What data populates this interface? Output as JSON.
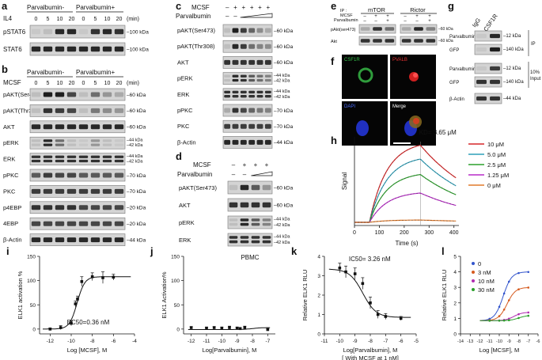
{
  "panel_letters": [
    "a",
    "b",
    "c",
    "d",
    "e",
    "f",
    "g",
    "h",
    "i",
    "j",
    "k",
    "l"
  ],
  "kda_unit": "kDa",
  "min_unit": "(min)",
  "plus": "+",
  "minus": "–",
  "panel_a": {
    "row_label": "IL4",
    "groups": [
      "Parvalbumin-",
      "Parvalbumin+"
    ],
    "times": [
      "0",
      "5",
      "10",
      "20",
      "0",
      "5",
      "10",
      "20"
    ],
    "blots": [
      {
        "label": "pSTAT6",
        "kda": "100 kDa"
      },
      {
        "label": "STAT6",
        "kda": "100 kDa"
      }
    ]
  },
  "panel_b": {
    "row_label": "MCSF",
    "groups": [
      "Parvalbumin-",
      "Parvalbumin+"
    ],
    "times": [
      "0",
      "5",
      "10",
      "20",
      "0",
      "5",
      "10",
      "20"
    ],
    "blots": [
      {
        "label": "pAKT(Ser473)",
        "kda": "60 kDa"
      },
      {
        "label": "pAKT(Thr308)",
        "kda": "60 kDa"
      },
      {
        "label": "AKT",
        "kda": "60 kDa"
      },
      {
        "label": "pERK",
        "kda": "44 kDa",
        "kda2": "42 kDa"
      },
      {
        "label": "ERK",
        "kda": "44 kDa",
        "kda2": "42 kDa"
      },
      {
        "label": "pPKC",
        "kda": "70 kDa"
      },
      {
        "label": "PKC",
        "kda": "70 kDa"
      },
      {
        "label": "p4EBP",
        "kda": "20 kDa"
      },
      {
        "label": "4EBP",
        "kda": "20 kDa"
      },
      {
        "label": "β-Actin",
        "kda": "44 kDa"
      }
    ]
  },
  "panel_c": {
    "rows": [
      "MCSF",
      "Parvalbumin"
    ],
    "mcsf_signs": [
      "-",
      "+",
      "+",
      "+",
      "+",
      "+"
    ],
    "blots": [
      {
        "label": "pAKT(Ser473)",
        "kda": "60 kDa"
      },
      {
        "label": "pAKT(Thr308)",
        "kda": "60 kDa"
      },
      {
        "label": "AKT",
        "kda": "60 kDa"
      },
      {
        "label": "pERK",
        "kda": "44 kDa",
        "kda2": "42 kDa"
      },
      {
        "label": "ERK",
        "kda": "44 kDa",
        "kda2": "42 kDa"
      },
      {
        "label": "pPKC",
        "kda": "70 kDa"
      },
      {
        "label": "PKC",
        "kda": "70 kDa"
      },
      {
        "label": "β-Actin",
        "kda": "44 kDa"
      }
    ]
  },
  "panel_d": {
    "rows": [
      "MCSF",
      "Parvalbumin"
    ],
    "mcsf_signs": [
      "-",
      "+",
      "+",
      "+"
    ],
    "blots": [
      {
        "label": "pAKT(Ser473)",
        "kda": "60 kDa"
      },
      {
        "label": "AKT",
        "kda": "60 kDa"
      },
      {
        "label": "pERK",
        "kda": "44 kDa",
        "kda2": "42 kDa"
      },
      {
        "label": "ERK",
        "kda": "44 kDa",
        "kda2": "42 kDa"
      }
    ],
    "caption": "PBMC"
  },
  "panel_e": {
    "ip_label": "IP :",
    "row_labels": [
      "MCSF",
      "Parvalbumin"
    ],
    "groups": [
      "mTOR",
      "Rictor"
    ],
    "mcsf_signs": [
      "-",
      "+",
      "+",
      "-",
      "+",
      "+"
    ],
    "parv_signs": [
      "-",
      "-",
      "+",
      "-",
      "-",
      "+"
    ],
    "blots": [
      {
        "label": "pAkt(ser473)",
        "kda": "60 kDa"
      },
      {
        "label": "Akt",
        "kda": "60 kDa"
      }
    ]
  },
  "panel_f": {
    "tiles": [
      "CSF1R",
      "PVALB",
      "DAPI",
      "Merge"
    ],
    "colors": [
      "#34c24a",
      "#e03030",
      "#4a6cff",
      "#ffffff"
    ]
  },
  "panel_g": {
    "lanes": [
      "IgG",
      "CSF1R"
    ],
    "rows": [
      {
        "label": "Parvalbumin",
        "kda": "12 kDa"
      },
      {
        "label": "GFP",
        "kda": "140 kDa"
      },
      {
        "label": "Parvalbumin",
        "kda": "12 kDa"
      },
      {
        "label": "GFP",
        "kda": "140 kDa"
      },
      {
        "label": "β-Actin",
        "kda": "44 kDa"
      }
    ],
    "ip_label": "IP",
    "input_label_1": "10%",
    "input_label_2": "Input"
  },
  "chart_data": [
    {
      "panel": "h",
      "type": "line",
      "annotation": "KD= 3.65 μM",
      "xlabel": "Time (s)",
      "ylabel": "Signal",
      "xlim": [
        0,
        420
      ],
      "xticks": [
        "0",
        "100",
        "200",
        "300",
        "400"
      ],
      "series": [
        {
          "name": "10 μM",
          "color": "#d62728",
          "plateau": 1.0
        },
        {
          "name": "5.0 μM",
          "color": "#2f9fb8",
          "plateau": 0.82
        },
        {
          "name": "2.5 μM",
          "color": "#2ca02c",
          "plateau": 0.62
        },
        {
          "name": "1.25 μM",
          "color": "#b82cc8",
          "plateau": 0.38
        },
        {
          "name": "0 μM",
          "color": "#e07a2c",
          "plateau": 0.03
        }
      ],
      "association": [
        60,
        265
      ]
    },
    {
      "panel": "i",
      "type": "scatter",
      "ylabel": "ELK1 activation %",
      "xlabel": "Log [MCSF], M",
      "annotation": "EC50=0.36 nM",
      "xlim": [
        -13,
        -4
      ],
      "ylim": [
        -10,
        150
      ],
      "xticks": [
        -12,
        -10,
        -8,
        -6,
        -4
      ],
      "yticks": [
        0,
        50,
        100,
        150
      ],
      "x": [
        -12,
        -11,
        -10,
        -9.6,
        -9.4,
        -9,
        -8,
        -7,
        -6
      ],
      "y": [
        0,
        3,
        12,
        52,
        62,
        98,
        108,
        106,
        107
      ],
      "err": [
        2,
        4,
        5,
        6,
        6,
        10,
        8,
        12,
        6
      ],
      "fit": {
        "bottom": 0,
        "top": 108,
        "logEC50": -9.44,
        "hill": 1.2
      }
    },
    {
      "panel": "j",
      "type": "scatter",
      "ylabel": "ELK1 Activation%",
      "xlabel": "Log[Parvalbumin], M",
      "xlim": [
        -12.5,
        -6.5
      ],
      "ylim": [
        -10,
        150
      ],
      "xticks": [
        -12,
        -11,
        -10,
        -9,
        -8,
        -7
      ],
      "yticks": [
        0,
        50,
        100,
        150
      ],
      "x": [
        -12,
        -11,
        -10.5,
        -10,
        -9.5,
        -9,
        -8.8,
        -8.5,
        -7
      ],
      "y": [
        3,
        2,
        3,
        2,
        3,
        2,
        1,
        3,
        -1
      ],
      "err": [
        2,
        2,
        2,
        2,
        3,
        2,
        2,
        3,
        2
      ],
      "fit": {
        "bottom": -1,
        "top": 3,
        "logEC50": -8,
        "hill": 1.5
      }
    },
    {
      "panel": "k",
      "type": "scatter",
      "ylabel": "Relative ELK1 RLU",
      "xlabel": "Log[Parvalbumin], M",
      "xlabel2": "[ With MCSF at 1 nM]",
      "annotation": "IC50= 3.26 nM",
      "xlim": [
        -11,
        -5
      ],
      "ylim": [
        0,
        4
      ],
      "xticks": [
        -11,
        -10,
        -9,
        -8,
        -7,
        -6,
        -5
      ],
      "yticks": [
        0,
        1,
        2,
        3,
        4
      ],
      "x": [
        -10,
        -9.6,
        -9,
        -8.5,
        -8,
        -7.5,
        -7,
        -6
      ],
      "y": [
        3.4,
        3.2,
        3.1,
        2.6,
        1.6,
        1.0,
        0.9,
        0.8
      ],
      "err": [
        0.25,
        0.3,
        0.3,
        0.3,
        0.3,
        0.2,
        0.15,
        0.1
      ],
      "fit": {
        "bottom": 0.85,
        "top": 3.35,
        "logEC50": -8.49,
        "hill": -1
      }
    },
    {
      "panel": "l",
      "type": "scatter",
      "ylabel": "Relative ELK1 RLU",
      "xlabel": "Log [MCSF], M",
      "xlim": [
        -14,
        -6
      ],
      "ylim": [
        0,
        5
      ],
      "xticks": [
        -14,
        -13,
        -12,
        -11,
        -10,
        -9,
        -8,
        -7,
        -6
      ],
      "yticks": [
        0,
        1,
        2,
        3,
        4,
        5
      ],
      "series": [
        {
          "name": "0",
          "color": "#3355cc",
          "top": 4.0,
          "logEC50": -9.6
        },
        {
          "name": "3 nM",
          "color": "#d65b1f",
          "top": 3.0,
          "logEC50": -9.2
        },
        {
          "name": "10 nM",
          "color": "#b02cb0",
          "top": 1.4,
          "logEC50": -8.5
        },
        {
          "name": "30 nM",
          "color": "#2ca02c",
          "top": 1.2,
          "logEC50": -8.0
        }
      ]
    }
  ]
}
